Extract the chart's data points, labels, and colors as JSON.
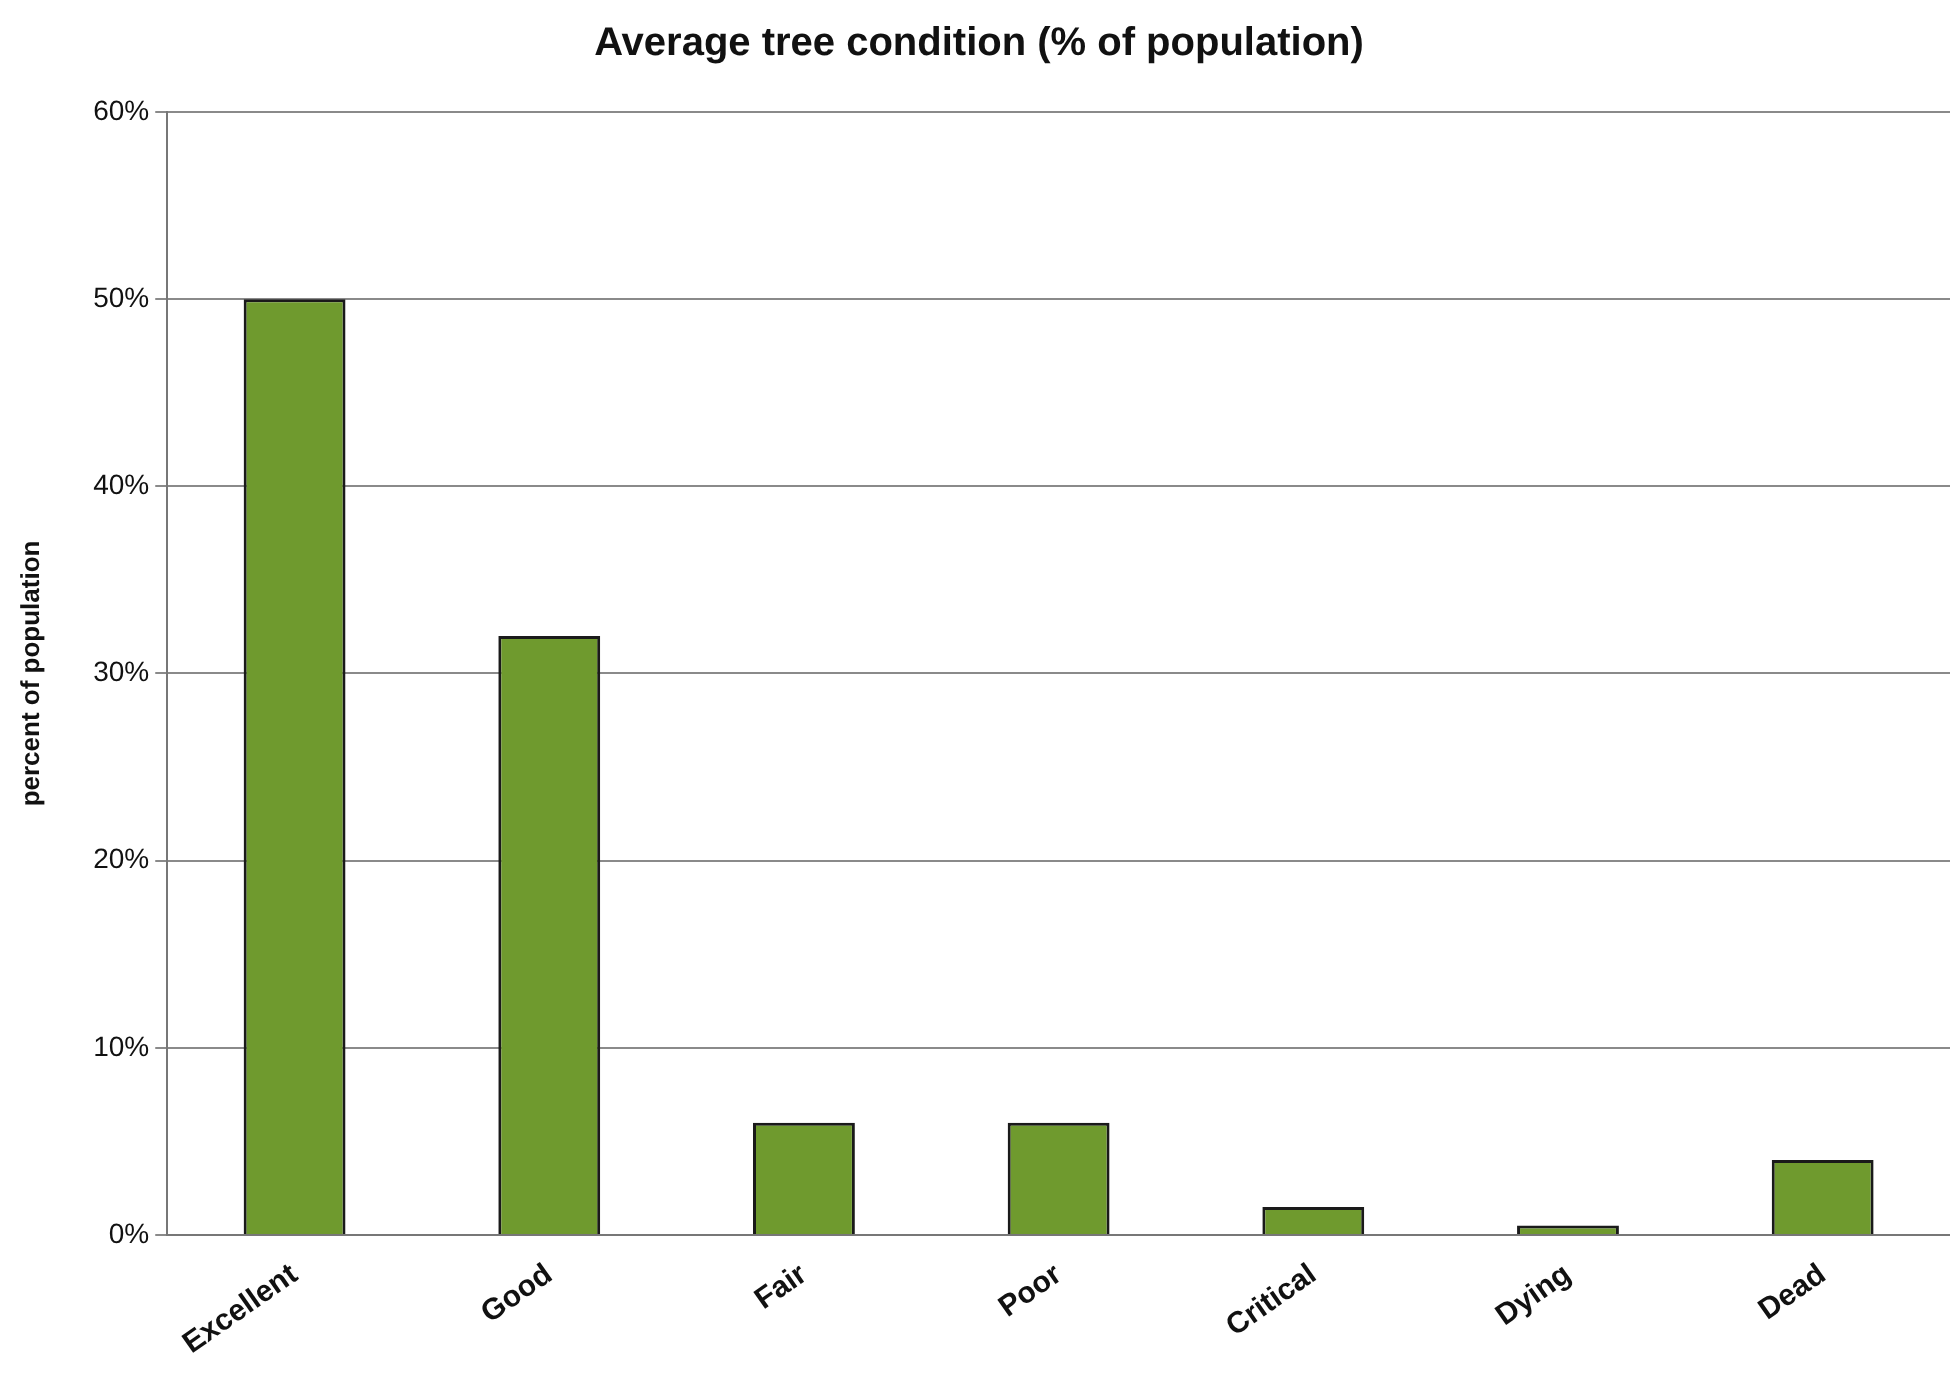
{
  "chart_data": {
    "type": "bar",
    "title": "Average tree condition (% of population)",
    "ylabel": "percent of population",
    "categories": [
      "Excellent",
      "Good",
      "Fair",
      "Poor",
      "Critical",
      "Dying",
      "Dead"
    ],
    "values": [
      50,
      32,
      6,
      6,
      1.5,
      0.5,
      4
    ],
    "color": "#6f9a2e",
    "ylim": [
      0,
      60
    ],
    "yticks": [
      {
        "value": 0,
        "label": "0%"
      },
      {
        "value": 10,
        "label": "10%"
      },
      {
        "value": 20,
        "label": "20%"
      },
      {
        "value": 30,
        "label": "30%"
      },
      {
        "value": 40,
        "label": "40%"
      },
      {
        "value": 50,
        "label": "50%"
      },
      {
        "value": 60,
        "label": "60%"
      }
    ],
    "grid": "y",
    "legend": false
  }
}
